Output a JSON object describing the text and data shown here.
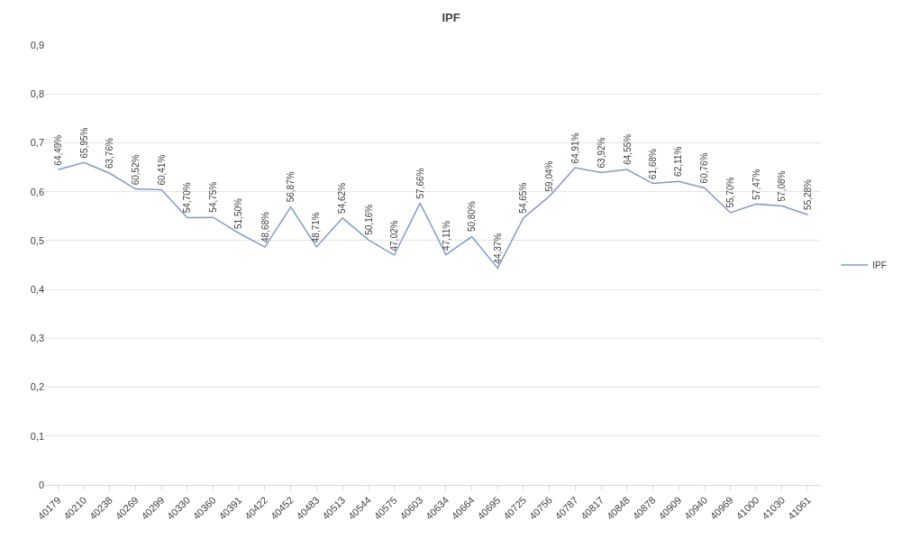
{
  "chart_data": {
    "type": "line",
    "title": "IPF",
    "categories": [
      "40179",
      "40210",
      "40238",
      "40269",
      "40299",
      "40330",
      "40360",
      "40391",
      "40422",
      "40452",
      "40483",
      "40513",
      "40544",
      "40575",
      "40603",
      "40634",
      "40664",
      "40695",
      "40725",
      "40756",
      "40787",
      "40817",
      "40848",
      "40878",
      "40909",
      "40940",
      "40969",
      "41000",
      "41030",
      "41061"
    ],
    "series": [
      {
        "name": "IPF",
        "color": "#7f9cc9",
        "values": [
          0.6449,
          0.6595,
          0.6376,
          0.6052,
          0.6041,
          0.547,
          0.5475,
          0.515,
          0.4868,
          0.5687,
          0.4871,
          0.5462,
          0.5016,
          0.4702,
          0.5766,
          0.4711,
          0.508,
          0.4437,
          0.5465,
          0.5904,
          0.6491,
          0.6392,
          0.6455,
          0.6168,
          0.6211,
          0.6076,
          0.557,
          0.5747,
          0.5708,
          0.5528
        ],
        "value_labels": [
          "64,49%",
          "65,95%",
          "63,76%",
          "60,52%",
          "60,41%",
          "54,70%",
          "54,75%",
          "51,50%",
          "48,68%",
          "56,87%",
          "48,71%",
          "54,62%",
          "50,16%",
          "47,02%",
          "57,66%",
          "47,11%",
          "50,80%",
          "44,37%",
          "54,65%",
          "59,04%",
          "64,91%",
          "63,92%",
          "64,55%",
          "61,68%",
          "62,11%",
          "60,76%",
          "55,70%",
          "57,47%",
          "57,08%",
          "55,28%"
        ]
      }
    ],
    "ylim": [
      0,
      0.9
    ],
    "yticks": [
      0,
      {
        "value": 0.1,
        "label": "0,1"
      },
      {
        "value": 0.2,
        "label": "0,2"
      },
      {
        "value": 0.3,
        "label": "0,3"
      },
      {
        "value": 0.4,
        "label": "0,4"
      },
      {
        "value": 0.5,
        "label": "0,5"
      },
      {
        "value": 0.6,
        "label": "0,6"
      },
      {
        "value": 0.7,
        "label": "0,7"
      },
      {
        "value": 0.8,
        "label": "0,8"
      },
      {
        "value": 0.9,
        "label": "0,9"
      }
    ],
    "grid": "y",
    "legend": "right",
    "marker": "none",
    "line_style": "solid"
  }
}
